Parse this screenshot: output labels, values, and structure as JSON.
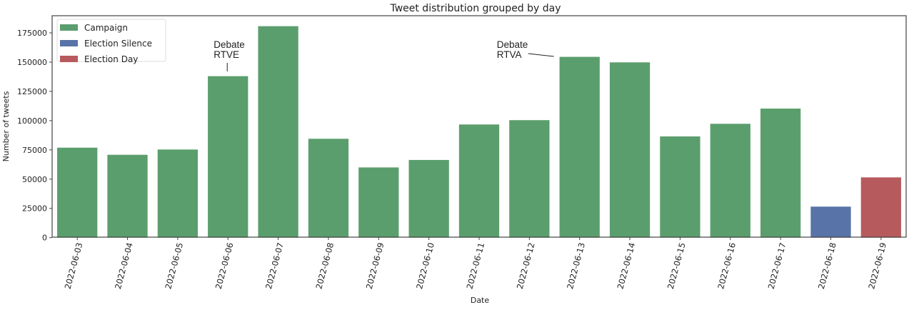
{
  "chart_data": {
    "type": "bar",
    "title": "Tweet distribution grouped by day",
    "xlabel": "Date",
    "ylabel": "Number of tweets",
    "ylim": [
      0,
      190000
    ],
    "yticks": [
      0,
      25000,
      50000,
      75000,
      100000,
      125000,
      150000,
      175000
    ],
    "grid": false,
    "legend_position": "top-left",
    "categories": [
      "2022-06-03",
      "2022-06-04",
      "2022-06-05",
      "2022-06-06",
      "2022-06-07",
      "2022-06-08",
      "2022-06-09",
      "2022-06-10",
      "2022-06-11",
      "2022-06-12",
      "2022-06-13",
      "2022-06-14",
      "2022-06-15",
      "2022-06-16",
      "2022-06-17",
      "2022-06-18",
      "2022-06-19"
    ],
    "values": [
      76900,
      70800,
      75300,
      138000,
      180700,
      84500,
      60000,
      66400,
      96700,
      100400,
      154500,
      149800,
      86500,
      97300,
      110300,
      26500,
      51500
    ],
    "groups": [
      "Campaign",
      "Campaign",
      "Campaign",
      "Campaign",
      "Campaign",
      "Campaign",
      "Campaign",
      "Campaign",
      "Campaign",
      "Campaign",
      "Campaign",
      "Campaign",
      "Campaign",
      "Campaign",
      "Campaign",
      "Election Silence",
      "Election Day"
    ],
    "legend": [
      {
        "label": "Campaign",
        "color": "#5b9e6d"
      },
      {
        "label": "Election Silence",
        "color": "#5873a8"
      },
      {
        "label": "Election Day",
        "color": "#b65a5e"
      }
    ],
    "annotations": [
      {
        "lines": [
          "Debate",
          "RTVE"
        ],
        "category": "2022-06-06"
      },
      {
        "lines": [
          "Debate",
          "RTVA"
        ],
        "category": "2022-06-13"
      }
    ]
  }
}
